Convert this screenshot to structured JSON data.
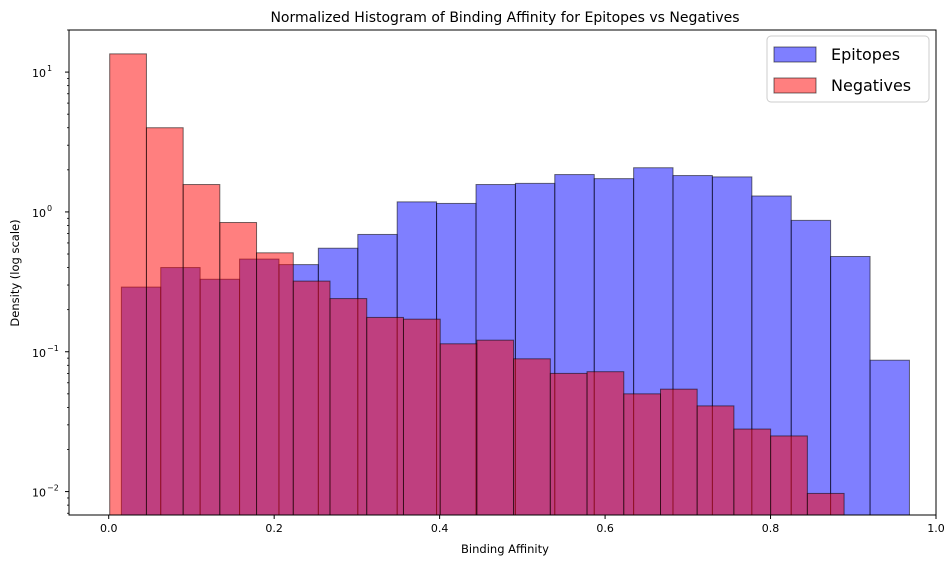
{
  "chart_data": {
    "type": "bar",
    "title": "Normalized Histogram of Binding Affinity for Epitopes vs Negatives",
    "xlabel": "Binding Affinity",
    "ylabel": "Density (log scale)",
    "xlim": [
      -0.048,
      1.0
    ],
    "ylim": [
      0.0068,
      20
    ],
    "yscale": "log",
    "grid": false,
    "legend_position": "top-right",
    "x_ticks": [
      0.0,
      0.2,
      0.4,
      0.6,
      0.8,
      1.0
    ],
    "x_tick_labels": [
      "0.0",
      "0.2",
      "0.4",
      "0.6",
      "0.8",
      "1.0"
    ],
    "y_ticks": [
      0.01,
      0.1,
      1,
      10
    ],
    "y_tick_labels": [
      "10",
      "10",
      "10",
      "10"
    ],
    "y_tick_exponents": [
      "−2",
      "−1",
      "0",
      "1"
    ],
    "series": [
      {
        "name": "Epitopes",
        "color": "#0000ff",
        "opacity": 0.5,
        "bins": [
          {
            "x0": 0.0153,
            "x1": 0.0629,
            "value": 0.29
          },
          {
            "x0": 0.0629,
            "x1": 0.1105,
            "value": 0.4
          },
          {
            "x0": 0.1105,
            "x1": 0.1582,
            "value": 0.33
          },
          {
            "x0": 0.1582,
            "x1": 0.2058,
            "value": 0.46
          },
          {
            "x0": 0.2058,
            "x1": 0.2534,
            "value": 0.42
          },
          {
            "x0": 0.2534,
            "x1": 0.3011,
            "value": 0.55
          },
          {
            "x0": 0.3011,
            "x1": 0.3487,
            "value": 0.69
          },
          {
            "x0": 0.3487,
            "x1": 0.3963,
            "value": 1.18
          },
          {
            "x0": 0.3963,
            "x1": 0.444,
            "value": 1.15
          },
          {
            "x0": 0.444,
            "x1": 0.4916,
            "value": 1.57
          },
          {
            "x0": 0.4916,
            "x1": 0.5392,
            "value": 1.6
          },
          {
            "x0": 0.5392,
            "x1": 0.5869,
            "value": 1.85
          },
          {
            "x0": 0.5869,
            "x1": 0.6345,
            "value": 1.73
          },
          {
            "x0": 0.6345,
            "x1": 0.6821,
            "value": 2.07
          },
          {
            "x0": 0.6821,
            "x1": 0.7297,
            "value": 1.82
          },
          {
            "x0": 0.7297,
            "x1": 0.7774,
            "value": 1.78
          },
          {
            "x0": 0.7774,
            "x1": 0.825,
            "value": 1.3
          },
          {
            "x0": 0.825,
            "x1": 0.8726,
            "value": 0.87
          },
          {
            "x0": 0.8726,
            "x1": 0.9203,
            "value": 0.48
          },
          {
            "x0": 0.9203,
            "x1": 0.9679,
            "value": 0.087
          }
        ]
      },
      {
        "name": "Negatives",
        "color": "#ff0000",
        "opacity": 0.5,
        "bins": [
          {
            "x0": 0.0012,
            "x1": 0.0456,
            "value": 13.5
          },
          {
            "x0": 0.0456,
            "x1": 0.09,
            "value": 4.0
          },
          {
            "x0": 0.09,
            "x1": 0.1343,
            "value": 1.57
          },
          {
            "x0": 0.1343,
            "x1": 0.1787,
            "value": 0.84
          },
          {
            "x0": 0.1787,
            "x1": 0.2231,
            "value": 0.51
          },
          {
            "x0": 0.2231,
            "x1": 0.2675,
            "value": 0.32
          },
          {
            "x0": 0.2675,
            "x1": 0.3119,
            "value": 0.24
          },
          {
            "x0": 0.3119,
            "x1": 0.3563,
            "value": 0.176
          },
          {
            "x0": 0.3563,
            "x1": 0.4007,
            "value": 0.171
          },
          {
            "x0": 0.4007,
            "x1": 0.445,
            "value": 0.114
          },
          {
            "x0": 0.445,
            "x1": 0.4894,
            "value": 0.121
          },
          {
            "x0": 0.4894,
            "x1": 0.5338,
            "value": 0.089
          },
          {
            "x0": 0.5338,
            "x1": 0.5782,
            "value": 0.07
          },
          {
            "x0": 0.5782,
            "x1": 0.6226,
            "value": 0.072
          },
          {
            "x0": 0.6226,
            "x1": 0.667,
            "value": 0.05
          },
          {
            "x0": 0.667,
            "x1": 0.7113,
            "value": 0.054
          },
          {
            "x0": 0.7113,
            "x1": 0.7557,
            "value": 0.041
          },
          {
            "x0": 0.7557,
            "x1": 0.8001,
            "value": 0.028
          },
          {
            "x0": 0.8001,
            "x1": 0.8445,
            "value": 0.025
          },
          {
            "x0": 0.8445,
            "x1": 0.8889,
            "value": 0.0097
          }
        ]
      }
    ]
  }
}
